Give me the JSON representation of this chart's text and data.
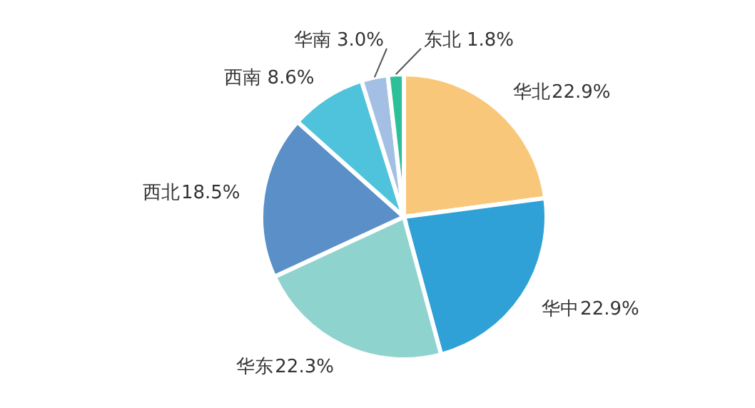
{
  "chart_data": {
    "type": "pie",
    "categories": [
      "华北",
      "华中",
      "华东",
      "西北",
      "西南",
      "华南",
      "东北"
    ],
    "values": [
      22.9,
      22.9,
      22.3,
      18.5,
      8.6,
      3.0,
      1.8
    ],
    "colors": [
      "#f9c77a",
      "#2fa1d6",
      "#8fd3cf",
      "#5a8fc8",
      "#4fc3dc",
      "#a3bfe3",
      "#2bbf9a"
    ],
    "value_labels": [
      "22.9%",
      "22.9%",
      "22.3%",
      "18.5%",
      "8.6%",
      "3.0%",
      "1.8%"
    ]
  }
}
